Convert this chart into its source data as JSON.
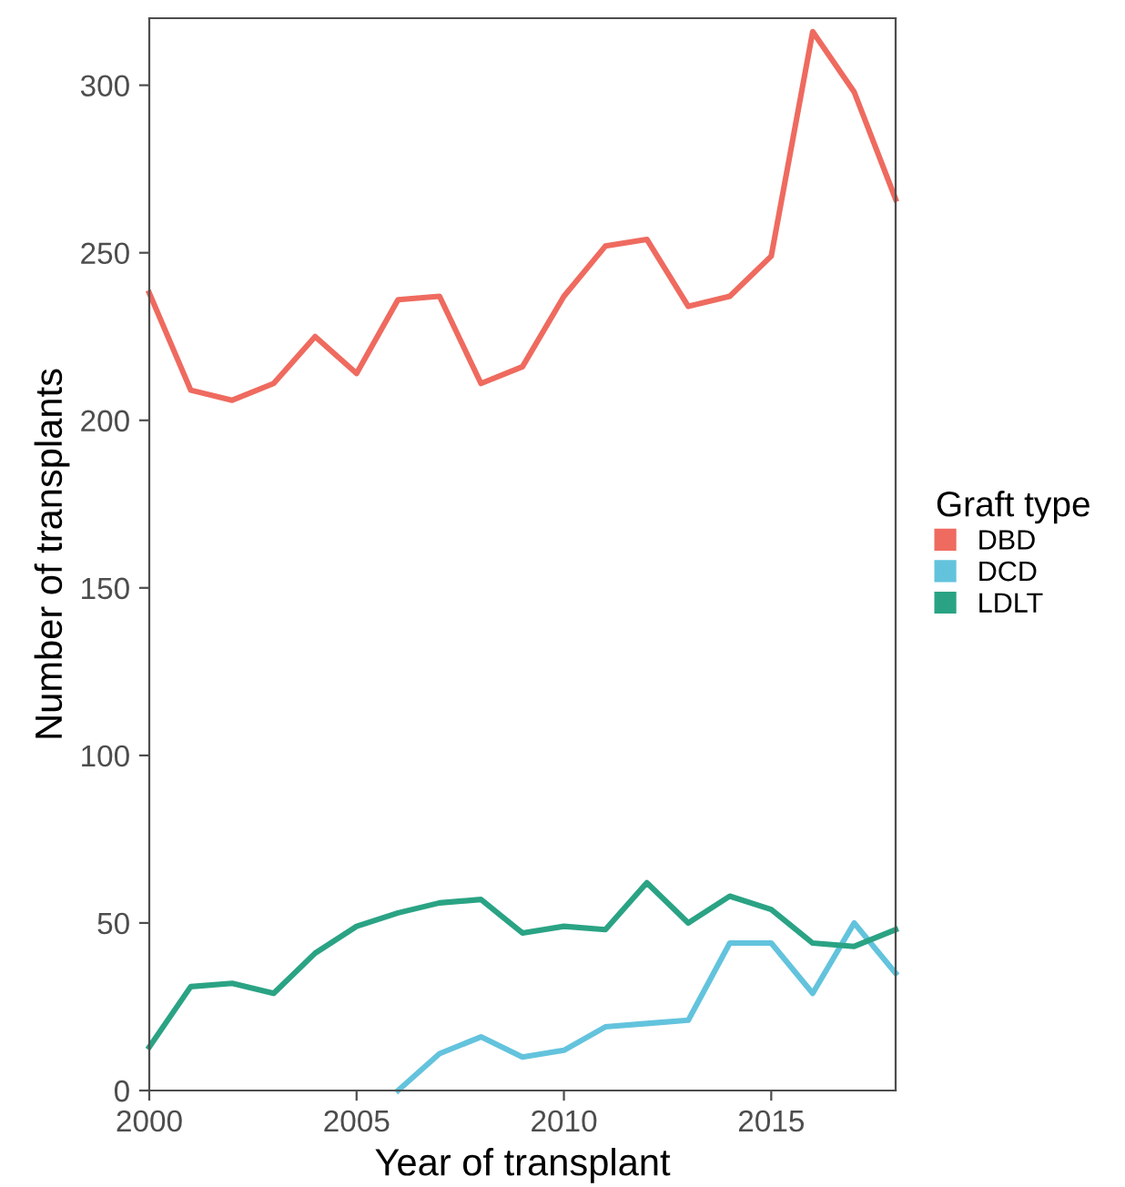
{
  "chart_data": {
    "type": "line",
    "xlabel": "Year of transplant",
    "ylabel": "Number of transplants",
    "legend_title": "Graft type",
    "legend": "right",
    "grid": false,
    "xlim": [
      2000,
      2018
    ],
    "xticks": [
      2000,
      2005,
      2010,
      2015
    ],
    "ylim": [
      0,
      320
    ],
    "yticks": [
      0,
      50,
      100,
      150,
      200,
      250,
      300
    ],
    "series": [
      {
        "name": "DBD",
        "color": "#ef6a5f",
        "x": [
          2000,
          2001,
          2002,
          2003,
          2004,
          2005,
          2006,
          2007,
          2008,
          2009,
          2010,
          2011,
          2012,
          2013,
          2014,
          2015,
          2016,
          2017,
          2018
        ],
        "values": [
          238,
          209,
          206,
          211,
          225,
          214,
          236,
          237,
          211,
          216,
          237,
          252,
          254,
          234,
          237,
          249,
          316,
          298,
          266
        ]
      },
      {
        "name": "DCD",
        "color": "#63c3dd",
        "x": [
          2006,
          2007,
          2008,
          2009,
          2010,
          2011,
          2012,
          2013,
          2014,
          2015,
          2016,
          2017,
          2018
        ],
        "values": [
          0,
          11,
          16,
          10,
          12,
          19,
          20,
          21,
          44,
          44,
          29,
          50,
          35
        ]
      },
      {
        "name": "LDLT",
        "color": "#2aa384",
        "x": [
          2000,
          2001,
          2002,
          2003,
          2004,
          2005,
          2006,
          2007,
          2008,
          2009,
          2010,
          2011,
          2012,
          2013,
          2014,
          2015,
          2016,
          2017,
          2018
        ],
        "values": [
          13,
          31,
          32,
          29,
          41,
          49,
          53,
          56,
          57,
          47,
          49,
          48,
          62,
          50,
          58,
          54,
          44,
          43,
          48
        ]
      }
    ]
  }
}
